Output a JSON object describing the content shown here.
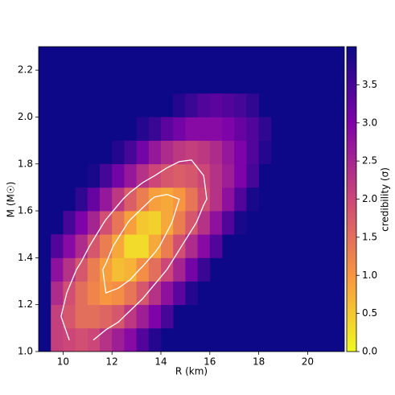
{
  "chart_data": {
    "type": "heatmap",
    "xlabel": "R (km)",
    "ylabel": "M (M☉)",
    "colorbar_label": "credibility (σ)",
    "xlim": [
      9,
      21.5
    ],
    "ylim": [
      1.0,
      2.3
    ],
    "xticks": [
      10,
      12,
      14,
      16,
      18,
      20
    ],
    "yticks": [
      {
        "value": 1.0,
        "label": "1.0"
      },
      1.2,
      1.4,
      1.6,
      1.8,
      {
        "value": 2.0,
        "label": "2.0"
      },
      2.2
    ],
    "clim": [
      0,
      4
    ],
    "cticks": [
      {
        "value": 0,
        "label": "0.0"
      },
      0.5,
      {
        "value": 1,
        "label": "1.0"
      },
      1.5,
      {
        "value": 2,
        "label": "2.0"
      },
      2.5,
      {
        "value": 3,
        "label": "3.0"
      },
      3.5
    ],
    "colormap": [
      "#f0f921",
      "#f89540",
      "#cc4778",
      "#7e03a8",
      "#0d0887"
    ],
    "contours": [
      1,
      2
    ],
    "contour_color": "#ffffff",
    "xbins": [
      9.5,
      10,
      10.5,
      11,
      11.5,
      12,
      12.5,
      13,
      13.5,
      14,
      14.5,
      15,
      15.5,
      16,
      16.5,
      17,
      17.5,
      18,
      18.5
    ],
    "ybins": [
      1.0,
      1.1,
      1.2,
      1.3,
      1.4,
      1.5,
      1.6,
      1.7,
      1.8,
      1.9,
      2.0,
      2.1
    ],
    "z": [
      [
        2.1,
        2.0,
        1.9,
        2.0,
        2.3,
        2.6,
        2.9,
        3.4,
        3.8,
        null,
        null,
        null,
        null,
        null,
        null,
        null,
        null,
        null
      ],
      [
        2.1,
        1.8,
        1.5,
        1.5,
        1.6,
        1.8,
        2.2,
        2.6,
        3.0,
        3.5,
        null,
        null,
        null,
        null,
        null,
        null,
        null,
        null
      ],
      [
        2.4,
        1.9,
        1.5,
        1.2,
        1.0,
        1.1,
        1.4,
        1.8,
        2.3,
        2.8,
        3.3,
        3.8,
        null,
        null,
        null,
        null,
        null,
        null
      ],
      [
        2.8,
        2.3,
        1.8,
        1.3,
        0.9,
        0.6,
        0.7,
        1.1,
        1.5,
        2.0,
        2.5,
        3.1,
        3.6,
        null,
        null,
        null,
        null,
        null
      ],
      [
        3.4,
        2.9,
        2.4,
        1.8,
        1.3,
        0.8,
        0.3,
        0.3,
        0.8,
        1.3,
        1.9,
        2.4,
        2.9,
        3.4,
        null,
        null,
        null,
        null
      ],
      [
        null,
        3.5,
        3.0,
        2.5,
        1.9,
        1.4,
        0.9,
        0.5,
        0.4,
        0.8,
        1.3,
        1.8,
        2.3,
        2.8,
        3.4,
        3.9,
        null,
        null
      ],
      [
        null,
        null,
        3.7,
        3.2,
        2.7,
        2.2,
        1.7,
        1.3,
        0.9,
        0.8,
        1.0,
        1.4,
        1.9,
        2.3,
        2.8,
        3.4,
        3.9,
        null
      ],
      [
        null,
        null,
        null,
        3.9,
        3.5,
        3.1,
        2.7,
        2.3,
        2.0,
        1.8,
        1.7,
        1.8,
        2.0,
        2.3,
        2.6,
        3.0,
        3.5,
        null
      ],
      [
        null,
        null,
        null,
        null,
        null,
        3.8,
        3.5,
        3.1,
        2.7,
        2.4,
        2.2,
        2.1,
        2.2,
        2.4,
        2.7,
        3.0,
        3.4,
        3.8
      ],
      [
        null,
        null,
        null,
        null,
        null,
        null,
        null,
        3.8,
        3.6,
        3.3,
        3.1,
        2.9,
        2.9,
        2.9,
        3.0,
        3.2,
        3.4,
        3.7
      ],
      [
        null,
        null,
        null,
        null,
        null,
        null,
        null,
        null,
        null,
        null,
        3.8,
        3.6,
        3.4,
        3.3,
        3.4,
        3.5,
        3.7,
        null
      ]
    ]
  }
}
